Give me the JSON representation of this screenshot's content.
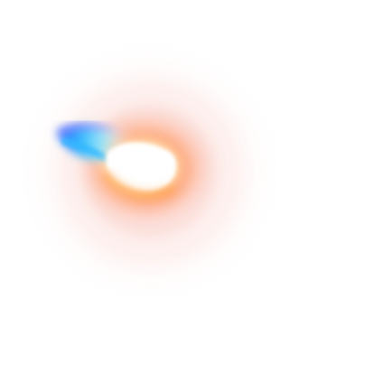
{
  "image": {
    "background_color": "#ffffff",
    "glow_colors": {
      "core": "#ffffff",
      "inner_orange": "#ff9a55",
      "outer_peach": "#f6b8a8",
      "flare_blue": "#1e6bff",
      "flare_cyan": "#52d8ff"
    },
    "icon_names": [
      "lens-flare-glow-icon"
    ]
  }
}
